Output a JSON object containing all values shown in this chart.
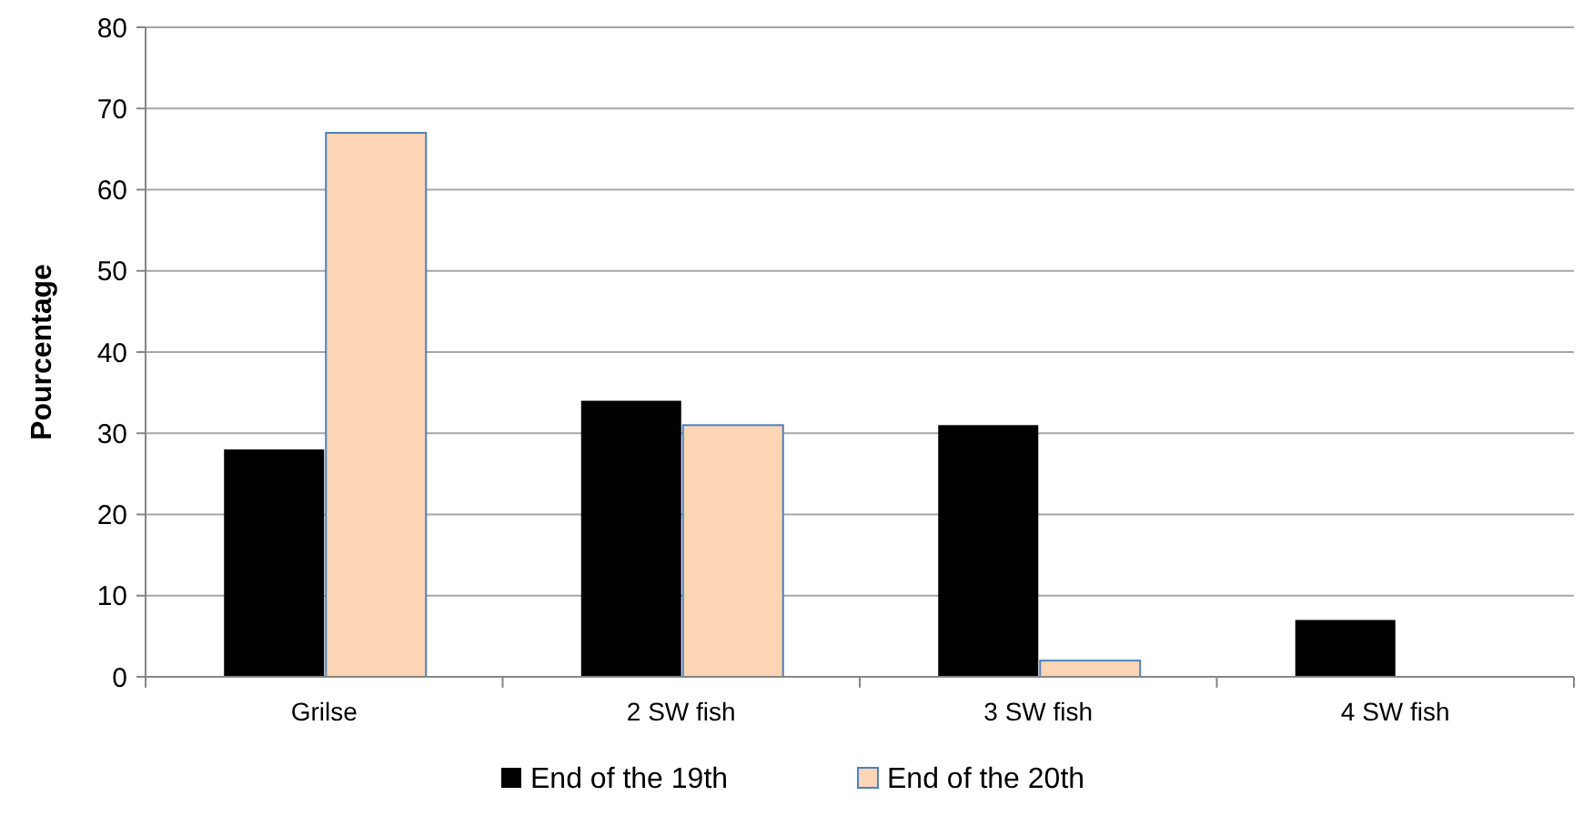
{
  "chart_data": {
    "type": "bar",
    "ylabel": "Pourcentage",
    "categories": [
      "Grilse",
      "2 SW fish",
      "3 SW fish",
      "4 SW fish"
    ],
    "series": [
      {
        "name": "End of the 19th",
        "color": "#000000",
        "values": [
          28,
          34,
          31,
          7
        ]
      },
      {
        "name": "End of the 20th",
        "color": "#fbd5b5",
        "values": [
          67,
          31,
          2,
          0
        ]
      }
    ],
    "ylim": [
      0,
      80
    ],
    "yticks": [
      0,
      10,
      20,
      30,
      40,
      50,
      60,
      70,
      80
    ],
    "grid": "y",
    "legend": "bottom"
  }
}
